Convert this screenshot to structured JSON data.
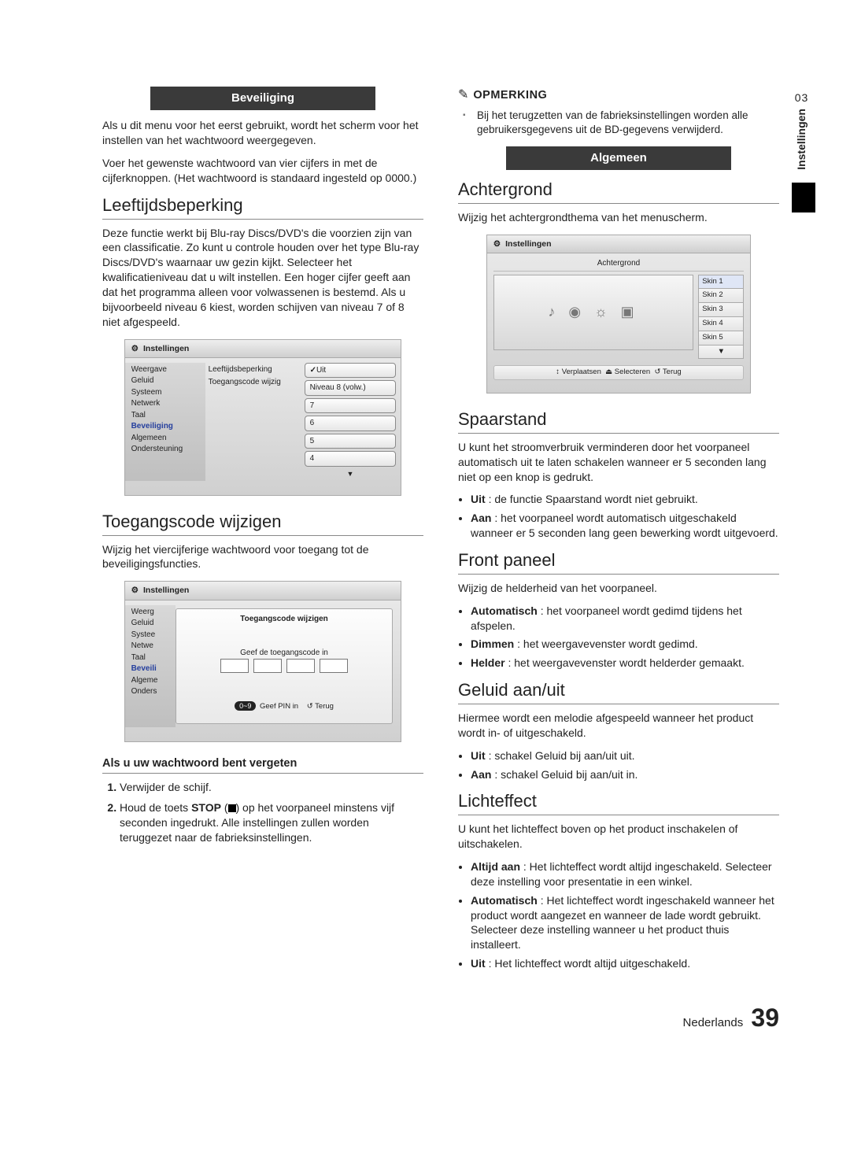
{
  "side": {
    "num": "03",
    "text": "Instellingen"
  },
  "left": {
    "header1": "Beveiliging",
    "intro1": "Als u dit menu voor het eerst gebruikt, wordt het scherm voor het instellen van het wachtwoord weergegeven.",
    "intro2": "Voer het gewenste wachtwoord van vier cijfers in met de cijferknoppen. (Het wachtwoord is standaard ingesteld op 0000.)",
    "sec1_title": "Leeftijdsbeperking",
    "sec1_body": "Deze functie werkt bij Blu-ray Discs/DVD's die voorzien zijn van een classificatie. Zo kunt u controle houden over het type Blu-ray Discs/DVD's waarnaar uw gezin kijkt. Selecteer het kwalificatieniveau dat u wilt instellen. Een hoger cijfer geeft aan dat het programma alleen voor volwassenen is bestemd. Als u bijvoorbeeld niveau 6 kiest, worden schijven van niveau 7 of 8 niet afgespeeld.",
    "sec2_title": "Toegangscode wijzigen",
    "sec2_body": "Wijzig het viercijferige wachtwoord voor toegang tot de beveiligingsfuncties.",
    "forgot_title": "Als u uw wachtwoord bent vergeten",
    "step1": "Verwijder de schijf.",
    "step2_pre": "Houd de toets ",
    "step2_stop": "STOP",
    "step2_post": ") op het voorpaneel minstens vijf seconden ingedrukt. Alle instellingen zullen worden teruggezet naar de fabrieksinstellingen."
  },
  "right": {
    "note_label": "OPMERKING",
    "note_body": "Bij het terugzetten van de fabrieksinstellingen worden alle gebruikersgegevens uit de BD-gegevens verwijderd.",
    "header2": "Algemeen",
    "achtergrond_title": "Achtergrond",
    "achtergrond_body": "Wijzig het achtergrondthema van het menuscherm.",
    "spaarstand_title": "Spaarstand",
    "spaarstand_body": "U kunt het stroomverbruik verminderen door het voorpaneel automatisch uit te laten schakelen wanneer er 5 seconden lang niet op een knop is gedrukt.",
    "sp_opts": [
      {
        "k": "Uit",
        "v": ": de functie Spaarstand wordt niet gebruikt."
      },
      {
        "k": "Aan",
        "v": ": het voorpaneel wordt automatisch uitgeschakeld wanneer er 5 seconden lang geen bewerking wordt uitgevoerd."
      }
    ],
    "front_title": "Front paneel",
    "front_body": "Wijzig de helderheid van het voorpaneel.",
    "front_opts": [
      {
        "k": "Automatisch",
        "v": ": het voorpaneel wordt gedimd tijdens het afspelen."
      },
      {
        "k": "Dimmen",
        "v": ": het weergavevenster wordt gedimd."
      },
      {
        "k": "Helder",
        "v": ": het weergavevenster wordt helderder gemaakt."
      }
    ],
    "geluid_title": "Geluid aan/uit",
    "geluid_body": "Hiermee wordt een melodie afgespeeld wanneer het product wordt in- of uitgeschakeld.",
    "geluid_opts": [
      {
        "k": "Uit",
        "v": ": schakel Geluid bij aan/uit uit."
      },
      {
        "k": "Aan",
        "v": ": schakel Geluid bij aan/uit in."
      }
    ],
    "licht_title": "Lichteffect",
    "licht_body": "U kunt het lichteffect boven op het product inschakelen of uitschakelen.",
    "licht_opts": [
      {
        "k": "Altijd aan",
        "v": ": Het lichteffect wordt altijd ingeschakeld. Selecteer deze instelling voor presentatie in een winkel."
      },
      {
        "k": "Automatisch",
        "v": ": Het lichteffect wordt ingeschakeld wanneer het product wordt aangezet en wanneer de lade wordt gebruikt. Selecteer deze instelling wanneer u het product thuis installeert."
      },
      {
        "k": "Uit",
        "v": ": Het lichteffect wordt altijd uitgeschakeld."
      }
    ]
  },
  "fig": {
    "settings": "Instellingen",
    "side_full": [
      "Weergave",
      "Geluid",
      "Systeem",
      "Netwerk",
      "Taal",
      "Beveiliging",
      "Algemeen",
      "Ondersteuning"
    ],
    "side_trunc": [
      "Weerg",
      "Geluid",
      "Systee",
      "Netwe",
      "Taal",
      "Beveili",
      "Algeme",
      "Onders"
    ],
    "mid": [
      "Leeftijdsbeperking",
      "Toegangscode wijzig"
    ],
    "opts": [
      "Uit",
      "Niveau 8 (volw.)",
      "7",
      "6",
      "5",
      "4"
    ],
    "pop_title": "Toegangscode wijzigen",
    "pop_prompt": "Geef de toegangscode in",
    "pop_legend_pin": "Geef PIN in",
    "pop_legend_back": "Terug",
    "pop_pill": "0~9",
    "bg_sub": "Achtergrond",
    "skins": [
      "Skin 1",
      "Skin 2",
      "Skin 3",
      "Skin 4",
      "Skin 5"
    ],
    "bg_legend_move": "Verplaatsen",
    "bg_legend_sel": "Selecteren",
    "bg_legend_back": "Terug",
    "preview_glyphs": "♪ ◉ ☼ ▣"
  },
  "footer": {
    "lang": "Nederlands",
    "page": "39"
  }
}
